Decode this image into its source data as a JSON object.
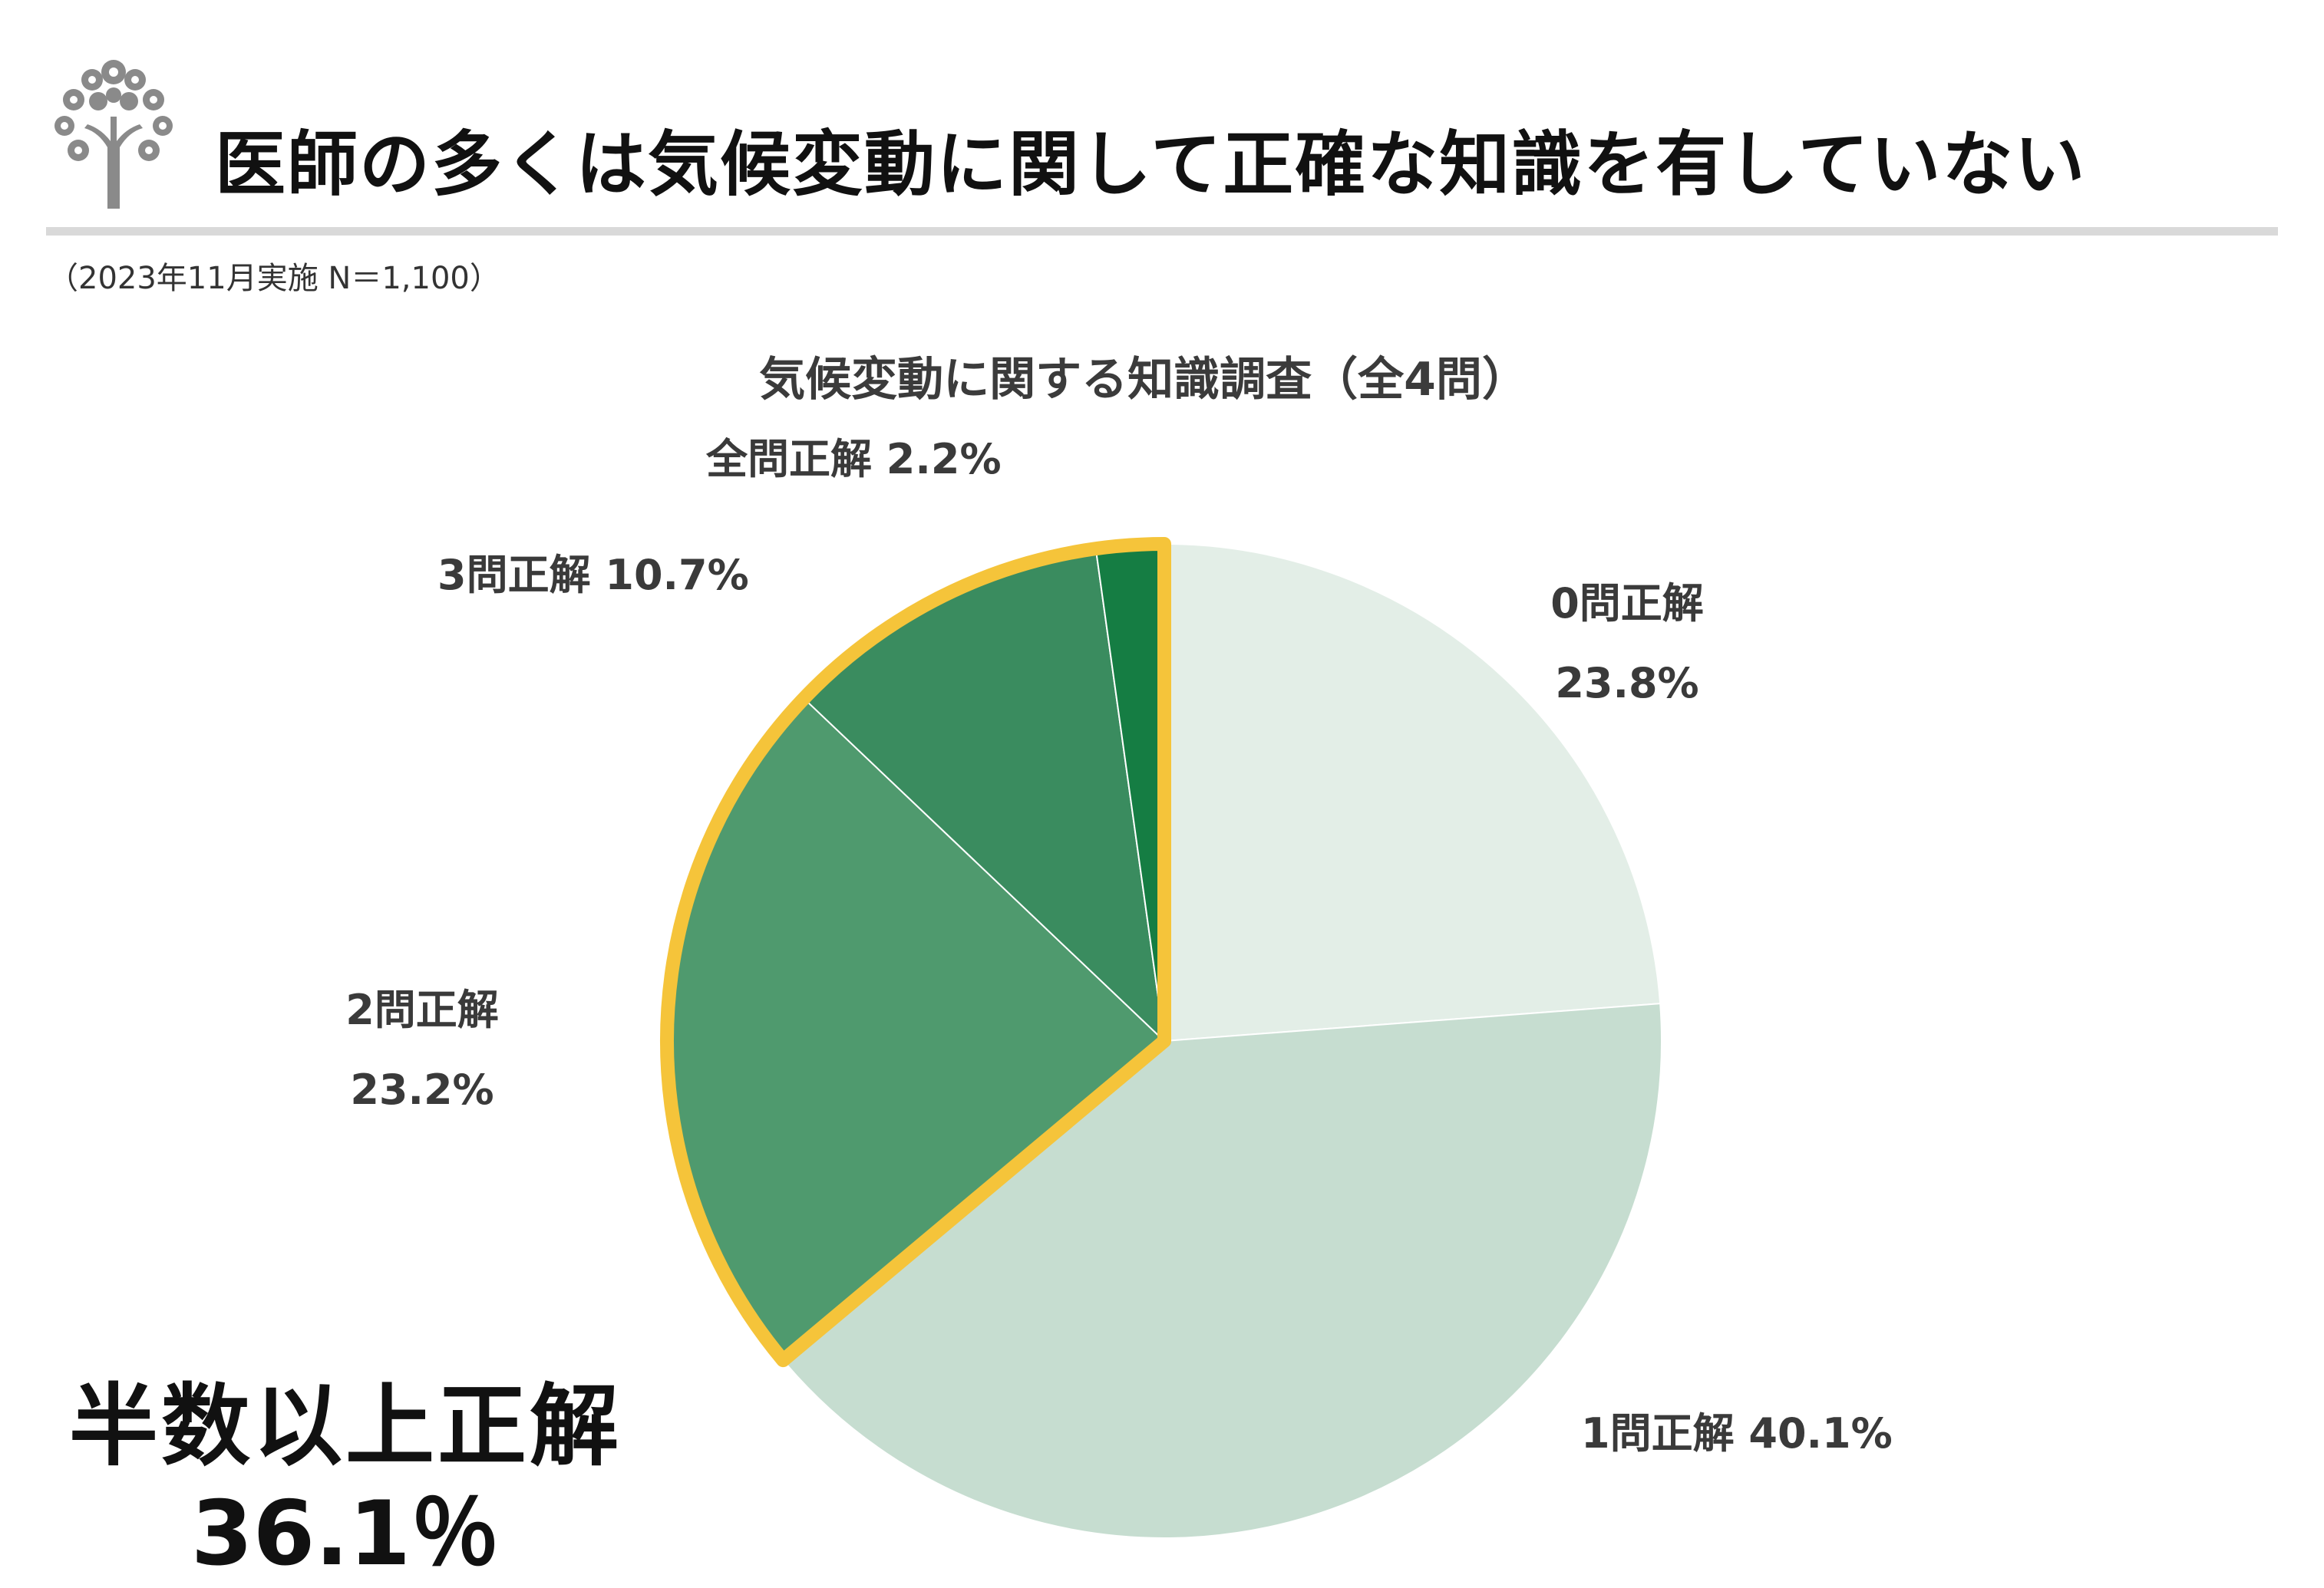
{
  "header": {
    "title": "医師の多くは気候変動に関して正確な知識を有していない",
    "logo_icon": "tree-logo-icon"
  },
  "survey_note": "（2023年11月実施 N＝1,100）",
  "summary": {
    "label": "半数以上正解",
    "value": "36.1％"
  },
  "chart_data": {
    "type": "pie",
    "title": "気候変動に関する知識調査（全4問）",
    "start_angle_deg": 0,
    "direction": "clockwise",
    "slices": [
      {
        "name": "0問正解",
        "value": 23.8,
        "label": "23.8%",
        "color": "#e3eee7"
      },
      {
        "name": "1問正解",
        "value": 40.1,
        "label": "40.1%",
        "color": "#c6ddd0"
      },
      {
        "name": "2問正解",
        "value": 23.2,
        "label": "23.2%",
        "color": "#4f9a6e"
      },
      {
        "name": "3問正解",
        "value": 10.7,
        "label": "10.7%",
        "color": "#3a8c5f"
      },
      {
        "name": "全問正解",
        "value": 2.2,
        "label": "2.2%",
        "color": "#157d43"
      }
    ],
    "highlight": {
      "slices": [
        "2問正解",
        "3問正解",
        "全問正解"
      ],
      "color": "#f5c43a"
    }
  }
}
